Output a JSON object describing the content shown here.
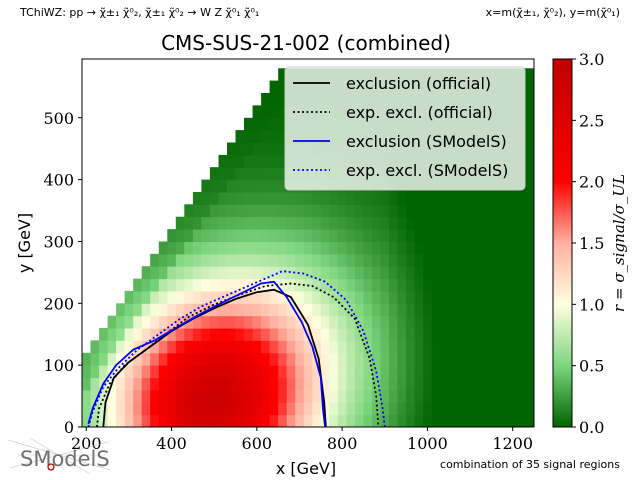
{
  "chart_data": {
    "type": "heatmap",
    "header_left": "TChiWZ: pp → χ̃±₁ χ̃⁰₂, χ̃±₁ χ̃⁰₂ → W Z χ̃⁰₁ χ̃⁰₁",
    "header_right": "x=m(χ̃±₁, χ̃⁰₂), y=m(χ̃⁰₁)",
    "title": "CMS-SUS-21-002 (combined)",
    "xlabel": "x [GeV]",
    "ylabel": "y [GeV]",
    "xlim": [
      190,
      1250
    ],
    "ylim": [
      0,
      595
    ],
    "xticks": [
      200,
      400,
      600,
      800,
      1000,
      1200
    ],
    "yticks": [
      0,
      100,
      200,
      300,
      400,
      500
    ],
    "colorbar": {
      "label": "r = σ_signal/σ_UL",
      "range": [
        0,
        3.0
      ],
      "ticks": [
        "0.0",
        "0.5",
        "1.0",
        "1.5",
        "2.0",
        "2.5",
        "3.0"
      ],
      "colormap": [
        "#006400",
        "#ffffe0",
        "#ff0000",
        "#c00000"
      ]
    },
    "grid": false,
    "legend_position": "top-right",
    "series": [
      {
        "name": "exclusion (official)",
        "color": "#000000",
        "style": "solid",
        "points": [
          [
            240,
            0
          ],
          [
            245,
            40
          ],
          [
            265,
            80
          ],
          [
            300,
            105
          ],
          [
            350,
            130
          ],
          [
            400,
            155
          ],
          [
            450,
            175
          ],
          [
            500,
            192
          ],
          [
            550,
            207
          ],
          [
            600,
            218
          ],
          [
            640,
            222
          ],
          [
            680,
            210
          ],
          [
            720,
            165
          ],
          [
            745,
            110
          ],
          [
            758,
            40
          ],
          [
            762,
            0
          ]
        ]
      },
      {
        "name": "exp. excl. (official)",
        "color": "#000000",
        "style": "dotted",
        "points": [
          [
            225,
            0
          ],
          [
            230,
            30
          ],
          [
            255,
            70
          ],
          [
            290,
            100
          ],
          [
            340,
            125
          ],
          [
            390,
            152
          ],
          [
            440,
            178
          ],
          [
            500,
            198
          ],
          [
            560,
            214
          ],
          [
            620,
            228
          ],
          [
            680,
            232
          ],
          [
            730,
            228
          ],
          [
            780,
            210
          ],
          [
            830,
            175
          ],
          [
            865,
            110
          ],
          [
            880,
            50
          ],
          [
            885,
            0
          ]
        ]
      },
      {
        "name": "exclusion (SModelS)",
        "color": "#0000ff",
        "style": "solid",
        "points": [
          [
            205,
            5
          ],
          [
            215,
            30
          ],
          [
            240,
            70
          ],
          [
            270,
            100
          ],
          [
            310,
            125
          ],
          [
            360,
            140
          ],
          [
            410,
            160
          ],
          [
            460,
            180
          ],
          [
            510,
            198
          ],
          [
            560,
            215
          ],
          [
            610,
            232
          ],
          [
            640,
            235
          ],
          [
            670,
            210
          ],
          [
            705,
            170
          ],
          [
            730,
            130
          ],
          [
            750,
            80
          ],
          [
            755,
            30
          ],
          [
            760,
            0
          ]
        ]
      },
      {
        "name": "exp. excl. (SModelS)",
        "color": "#0000ff",
        "style": "dotted",
        "points": [
          [
            205,
            0
          ],
          [
            215,
            25
          ],
          [
            240,
            65
          ],
          [
            275,
            95
          ],
          [
            320,
            125
          ],
          [
            370,
            150
          ],
          [
            420,
            175
          ],
          [
            470,
            195
          ],
          [
            520,
            210
          ],
          [
            570,
            225
          ],
          [
            620,
            240
          ],
          [
            660,
            252
          ],
          [
            710,
            248
          ],
          [
            760,
            235
          ],
          [
            810,
            205
          ],
          [
            850,
            155
          ],
          [
            880,
            90
          ],
          [
            895,
            30
          ],
          [
            900,
            0
          ]
        ]
      }
    ]
  },
  "footer": {
    "logo_text": "SModelS",
    "note": "combination of 35 signal regions"
  }
}
